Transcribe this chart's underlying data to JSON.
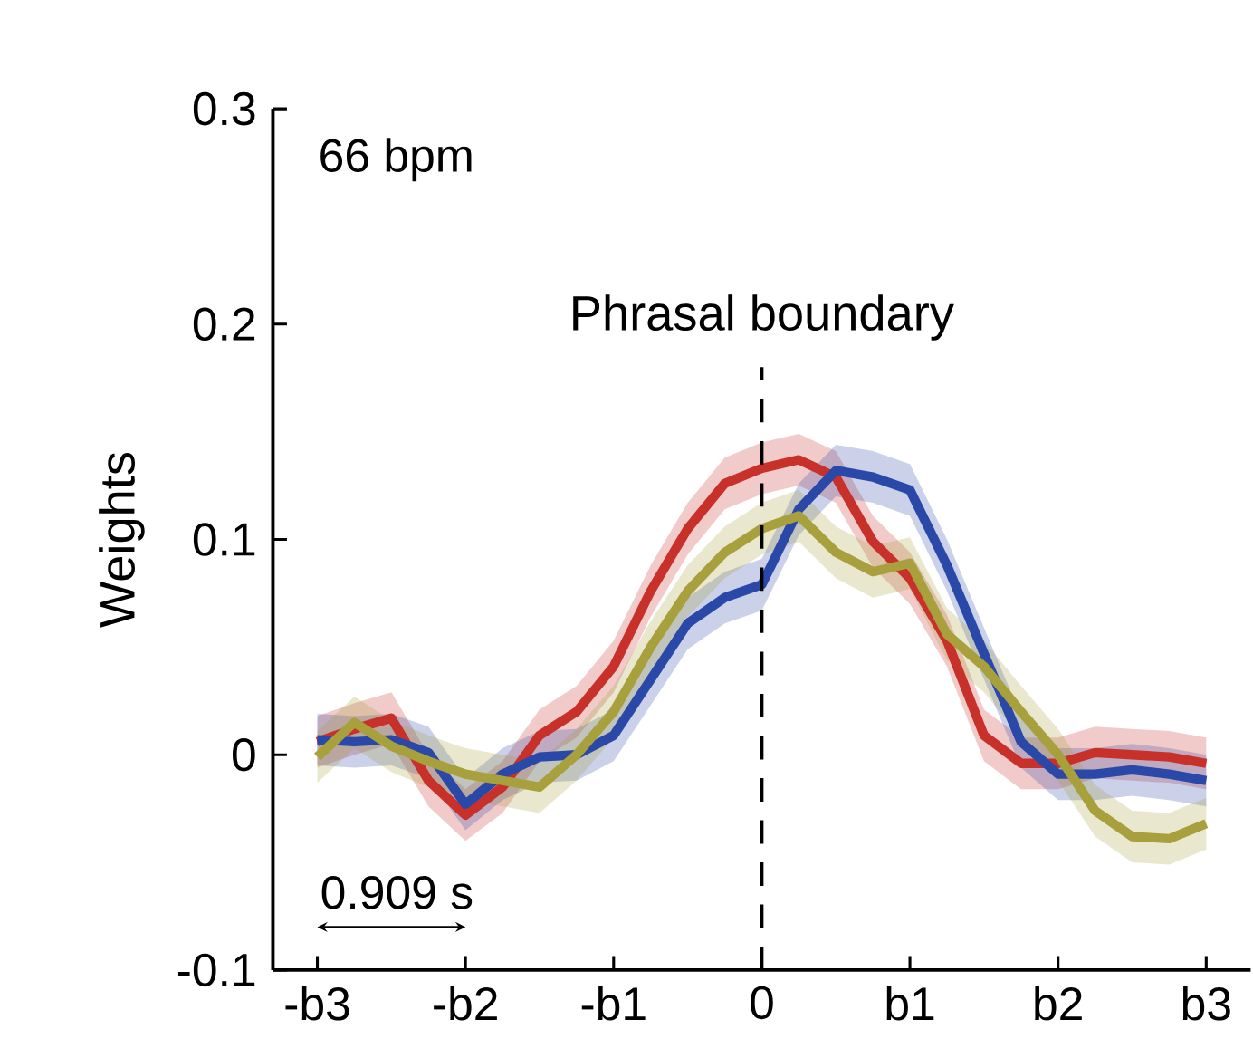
{
  "chart_data": {
    "type": "line",
    "ylabel": "Weights",
    "annotations": [
      "66 bpm",
      "0.909 s"
    ],
    "categories": [
      "-b3",
      null,
      null,
      null,
      "-b2",
      null,
      null,
      null,
      "-b1",
      null,
      null,
      null,
      "0",
      null,
      null,
      null,
      "b1",
      null,
      null,
      null,
      "b2",
      null,
      null,
      null,
      "b3"
    ],
    "series": [
      {
        "color": "#c8302a",
        "values": [
          0.006,
          0.012,
          0.017,
          -0.012,
          -0.028,
          -0.015,
          0.009,
          0.02,
          0.041,
          0.076,
          0.105,
          0.126,
          0.133,
          0.137,
          0.129,
          0.099,
          0.082,
          0.053,
          0.009,
          -0.004,
          -0.004,
          0.001,
          0,
          -0.001,
          -0.004
        ],
        "lower": [
          -0.006,
          0,
          0.005,
          -0.024,
          -0.04,
          -0.027,
          -0.003,
          0.008,
          0.029,
          0.064,
          0.093,
          0.114,
          0.121,
          0.125,
          0.117,
          0.087,
          0.07,
          0.041,
          -0.003,
          -0.016,
          -0.016,
          -0.011,
          -0.012,
          -0.013,
          -0.016
        ],
        "upper": [
          0.018,
          0.024,
          0.029,
          0,
          -0.016,
          -0.003,
          0.021,
          0.032,
          0.053,
          0.088,
          0.117,
          0.138,
          0.145,
          0.149,
          0.141,
          0.111,
          0.094,
          0.065,
          0.021,
          0.008,
          0.008,
          0.013,
          0.012,
          0.011,
          0.008
        ]
      },
      {
        "color": "#2a48a8",
        "values": [
          0.007,
          0.006,
          0.007,
          0.001,
          -0.023,
          -0.009,
          -0.001,
          0,
          0.009,
          0.035,
          0.061,
          0.073,
          0.079,
          0.114,
          0.132,
          0.129,
          0.123,
          0.088,
          0.047,
          0.006,
          -0.009,
          -0.009,
          -0.007,
          -0.009,
          -0.012
        ],
        "lower": [
          -0.005,
          -0.006,
          -0.005,
          -0.011,
          -0.035,
          -0.021,
          -0.013,
          -0.012,
          -0.003,
          0.023,
          0.049,
          0.061,
          0.067,
          0.102,
          0.12,
          0.117,
          0.111,
          0.076,
          0.035,
          -0.006,
          -0.021,
          -0.021,
          -0.019,
          -0.021,
          -0.024
        ],
        "upper": [
          0.019,
          0.018,
          0.019,
          0.013,
          -0.011,
          0.003,
          0.011,
          0.012,
          0.021,
          0.047,
          0.073,
          0.085,
          0.091,
          0.126,
          0.144,
          0.141,
          0.135,
          0.1,
          0.059,
          0.018,
          0.003,
          0.003,
          0.005,
          0.003,
          0
        ]
      },
      {
        "color": "#a8a03c",
        "values": [
          -0.001,
          0.015,
          0.004,
          -0.003,
          -0.009,
          -0.012,
          -0.015,
          0,
          0.02,
          0.05,
          0.076,
          0.094,
          0.105,
          0.111,
          0.094,
          0.085,
          0.089,
          0.056,
          0.041,
          0.02,
          0,
          -0.026,
          -0.038,
          -0.039,
          -0.032
        ],
        "lower": [
          -0.013,
          0.003,
          -0.008,
          -0.015,
          -0.021,
          -0.024,
          -0.027,
          -0.012,
          0.008,
          0.038,
          0.064,
          0.082,
          0.093,
          0.099,
          0.082,
          0.073,
          0.077,
          0.044,
          0.029,
          0.008,
          -0.012,
          -0.038,
          -0.05,
          -0.051,
          -0.044
        ],
        "upper": [
          0.011,
          0.027,
          0.016,
          0.009,
          0.003,
          0,
          -0.003,
          0.012,
          0.032,
          0.062,
          0.088,
          0.106,
          0.117,
          0.123,
          0.106,
          0.097,
          0.101,
          0.068,
          0.053,
          0.032,
          0.012,
          -0.014,
          -0.026,
          -0.027,
          -0.02
        ]
      }
    ],
    "ylim": [
      -0.1,
      0.3
    ],
    "yticks": [
      {
        "value": -0.1,
        "label": "-0.1"
      },
      0,
      {
        "value": 0.1,
        "label": "0.1"
      },
      {
        "value": 0.2,
        "label": "0.2"
      },
      {
        "value": 0.3,
        "label": "0.3"
      }
    ],
    "ref_lines": [
      {
        "axis": "x",
        "value": "0",
        "label": "Phrasal boundary",
        "line_style": "dashed",
        "color": "#000000"
      }
    ],
    "line_style": "solid",
    "marker": "none"
  }
}
